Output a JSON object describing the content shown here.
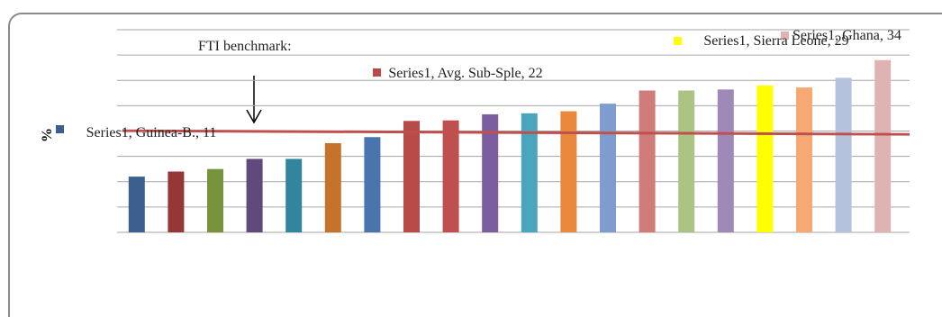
{
  "chart_data": {
    "type": "bar",
    "y_label": "%",
    "values": [
      11,
      12,
      12.5,
      14.5,
      14.5,
      17.6,
      18.8,
      22,
      22.1,
      23.3,
      23.5,
      23.9,
      25.4,
      28,
      28,
      28.2,
      29,
      28.6,
      30.5,
      34
    ],
    "value_labels": [
      "Series1, Guinea-B., 11",
      null,
      null,
      null,
      null,
      null,
      null,
      "Series1, Avg. Sub-Sple, 22",
      null,
      null,
      null,
      null,
      null,
      null,
      null,
      null,
      "Series1, Sierra Leone, 29",
      null,
      null,
      "Series1, Ghana, 34"
    ],
    "colors": [
      "#3b5f8e",
      "#953735",
      "#77933c",
      "#5f4a7b",
      "#31859c",
      "#c5722b",
      "#4a74ad",
      "#b84a48",
      "#c0504d",
      "#7c5e9e",
      "#4aa5bf",
      "#e8893d",
      "#7f9ccf",
      "#cf7c7b",
      "#acc483",
      "#9e89b8",
      "#ffff00",
      "#f7a873",
      "#b4c2de",
      "#e0b3b3"
    ],
    "ylim": [
      0,
      40
    ],
    "yticks": [
      0,
      5,
      10,
      15,
      20,
      25,
      30,
      35,
      40
    ],
    "grid": true,
    "benchmark": {
      "label": "FTI benchmark:",
      "value": 19.7,
      "color": "#c0504d"
    }
  }
}
